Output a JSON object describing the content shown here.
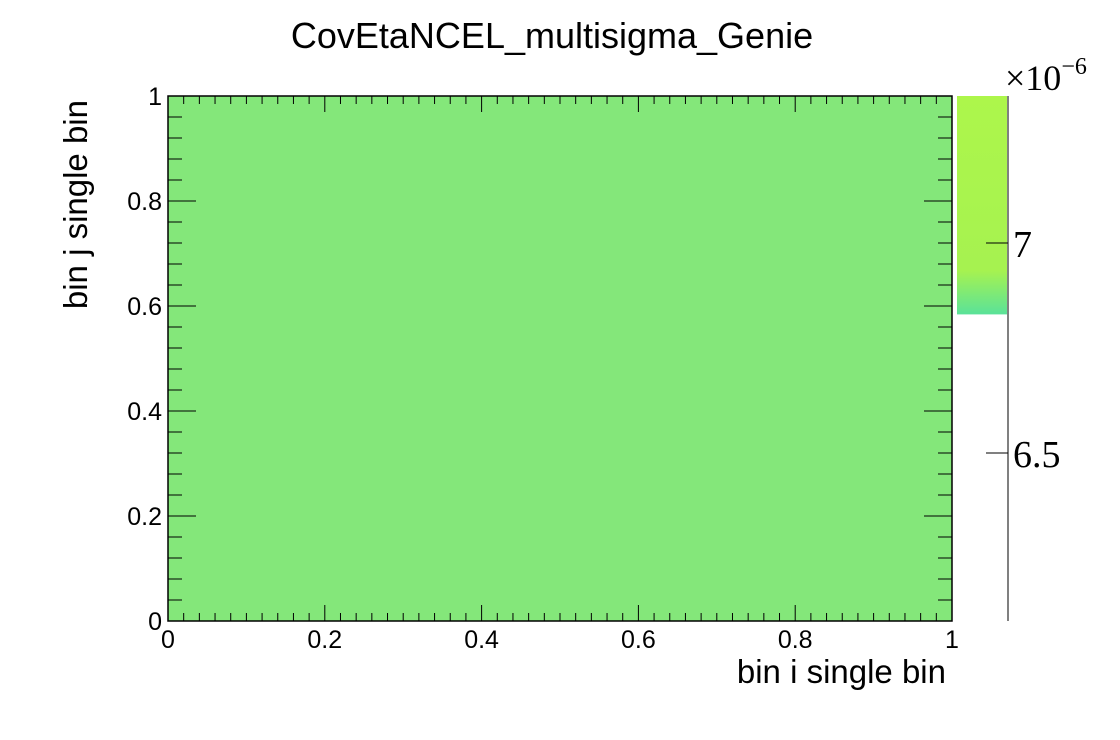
{
  "chart_data": {
    "type": "heatmap",
    "title": "CovEtaNCEL_multisigma_Genie",
    "xlabel": "bin i single bin",
    "ylabel": "bin j single bin",
    "xlim": [
      0,
      1
    ],
    "ylim": [
      0,
      1
    ],
    "x_ticks": [
      "0",
      "0.2",
      "0.4",
      "0.6",
      "0.8",
      "1"
    ],
    "y_ticks": [
      "0",
      "0.2",
      "0.4",
      "0.6",
      "0.8",
      "1"
    ],
    "cells": [
      {
        "x0": 0,
        "x1": 1,
        "y0": 0,
        "y1": 1,
        "value": 6.8e-06,
        "color": "#84e77a"
      }
    ],
    "colorbar": {
      "exponent_label": "×10",
      "exponent": "−6",
      "range": [
        6.1,
        7.35
      ],
      "fill_from": 6.83,
      "ticks": [
        {
          "value": 6.5,
          "label": "6.5"
        },
        {
          "value": 7.0,
          "label": "7"
        }
      ],
      "colors": {
        "top": "#adf64b",
        "mid": "#a6f250",
        "bottom": "#5ae299"
      }
    },
    "grid": false,
    "legend": "none"
  }
}
